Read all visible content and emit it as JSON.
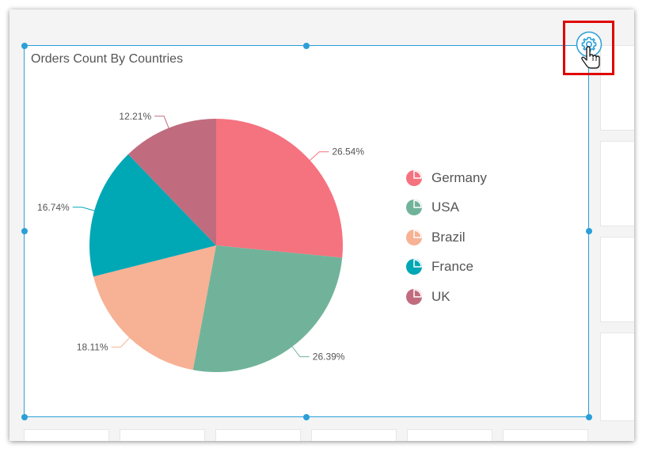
{
  "widget": {
    "title": "Orders Count By Countries"
  },
  "colors": {
    "selection_border": "#2a9fd8",
    "highlight_box": "#e00000"
  },
  "settings": {
    "icon": "gear-icon",
    "cursor": "hand-pointer-icon"
  },
  "chart_data": {
    "type": "pie",
    "title": "Orders Count By Countries",
    "categories": [
      "Germany",
      "USA",
      "Brazil",
      "France",
      "UK"
    ],
    "values": [
      26.54,
      26.39,
      18.11,
      16.74,
      12.21
    ],
    "labels": [
      "26.54%",
      "26.39%",
      "18.11%",
      "16.74%",
      "12.21%"
    ],
    "colors": [
      "#f5727f",
      "#71b39a",
      "#f7b194",
      "#00a7b4",
      "#c06c7e"
    ],
    "legend": "right",
    "start": "top",
    "direction": "clockwise"
  }
}
